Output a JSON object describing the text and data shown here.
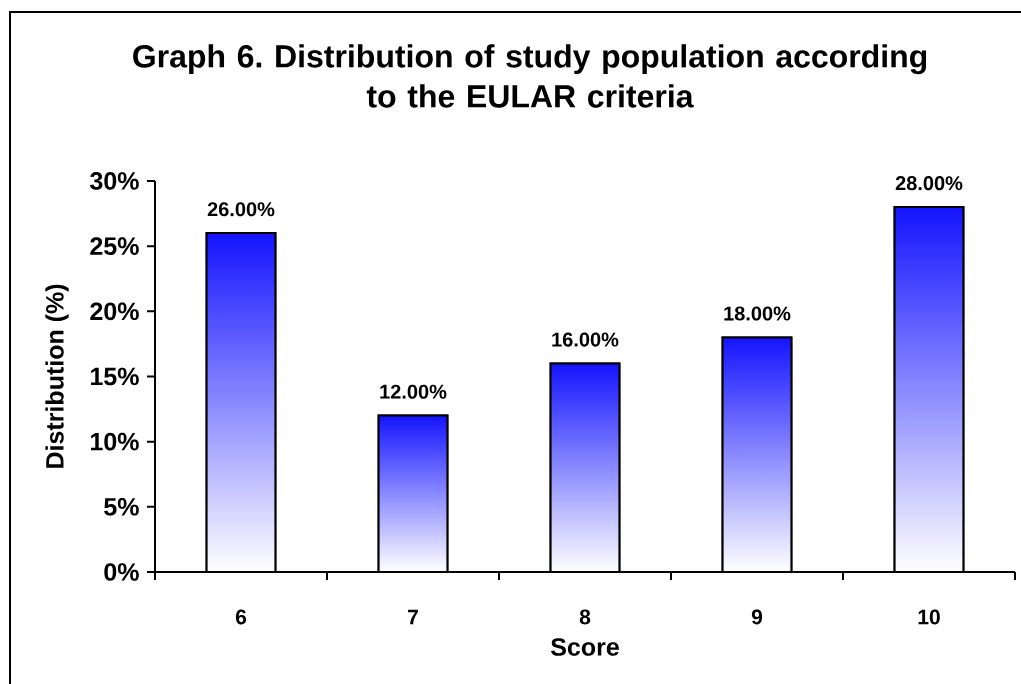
{
  "chart_data": {
    "type": "bar",
    "title": "Graph 6. Distribution of study population according to the EULAR criteria",
    "xlabel": "Score",
    "ylabel": "Distribution (%)",
    "categories": [
      "6",
      "7",
      "8",
      "9",
      "10"
    ],
    "values": [
      26,
      12,
      16,
      18,
      28
    ],
    "value_labels": [
      "26.00%",
      "12.00%",
      "16.00%",
      "18.00%",
      "28.00%"
    ],
    "color": "#1414ff",
    "ylim": [
      0,
      30
    ],
    "yticks": [
      {
        "value": 0,
        "label": "0%"
      },
      {
        "value": 5,
        "label": "5%"
      },
      {
        "value": 10,
        "label": "10%"
      },
      {
        "value": 15,
        "label": "15%"
      },
      {
        "value": 20,
        "label": "20%"
      },
      {
        "value": 25,
        "label": "25%"
      },
      {
        "value": 30,
        "label": "30%"
      }
    ]
  }
}
